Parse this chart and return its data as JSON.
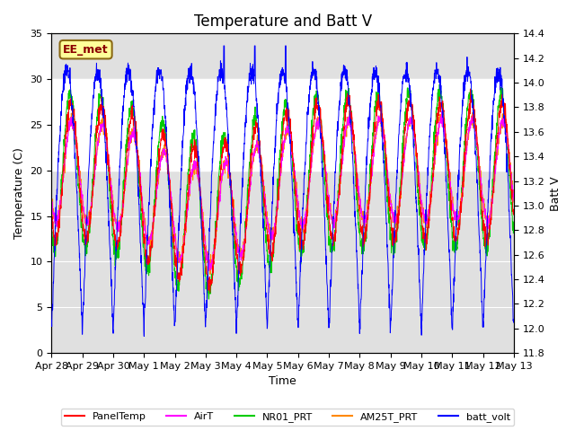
{
  "title": "Temperature and Batt V",
  "xlabel": "Time",
  "ylabel_left": "Temperature (C)",
  "ylabel_right": "Batt V",
  "annotation": "EE_met",
  "ylim_left": [
    0,
    35
  ],
  "ylim_right": [
    11.8,
    14.4
  ],
  "xlim": [
    0,
    15
  ],
  "x_tick_labels": [
    "Apr 28",
    "Apr 29",
    "Apr 30",
    "May 1",
    "May 2",
    "May 3",
    "May 4",
    "May 5",
    "May 6",
    "May 7",
    "May 8",
    "May 9",
    "May 10",
    "May 11",
    "May 12",
    "May 13"
  ],
  "x_tick_positions": [
    0,
    1,
    2,
    3,
    4,
    5,
    6,
    7,
    8,
    9,
    10,
    11,
    12,
    13,
    14,
    15
  ],
  "legend_labels": [
    "PanelTemp",
    "AirT",
    "NR01_PRT",
    "AM25T_PRT",
    "batt_volt"
  ],
  "legend_colors": [
    "#ff0000",
    "#ff00ff",
    "#00cc00",
    "#ff8800",
    "#0000ff"
  ],
  "background_color": "#ffffff",
  "plot_bg_color": "#e0e0e0",
  "shaded_region": [
    20,
    30
  ],
  "grid_color": "#ffffff",
  "right_ticks": [
    11.8,
    12.0,
    12.2,
    12.4,
    12.6,
    12.8,
    13.0,
    13.2,
    13.4,
    13.6,
    13.8,
    14.0,
    14.2,
    14.4
  ],
  "title_fontsize": 12,
  "axis_fontsize": 9,
  "tick_fontsize": 8
}
